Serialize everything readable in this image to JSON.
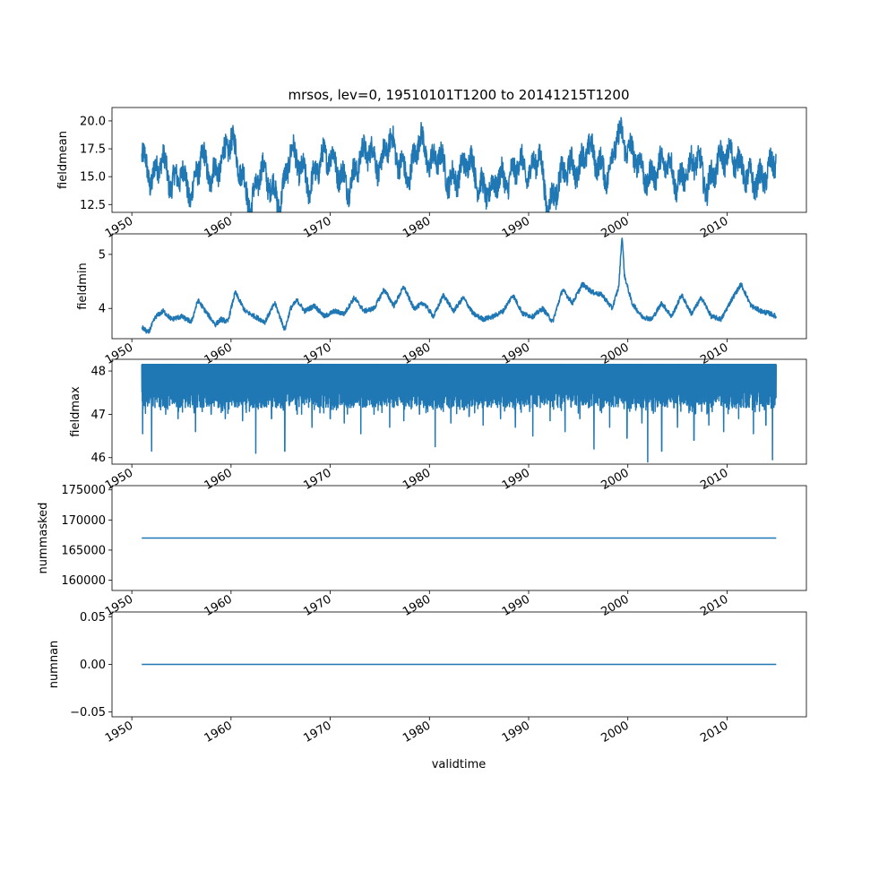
{
  "chart_data": {
    "type": "line",
    "title": "mrsos, lev=0, 19510101T1200 to 20141215T1200",
    "xlabel": "validtime",
    "series_color": "#1f77b4",
    "x_start": "1951-01-01",
    "x_end": "2014-12-15",
    "xlim": [
      "1948-01-01",
      "2018-01-01"
    ],
    "x_ticks": [
      "1950",
      "1960",
      "1970",
      "1980",
      "1990",
      "2000",
      "2010"
    ],
    "panels": [
      {
        "id": "fieldmean",
        "ylabel": "fieldmean",
        "ylim": [
          11.8,
          21.2
        ],
        "y_ticks": [
          {
            "value": 12.5,
            "label": "12.5"
          },
          {
            "value": 15.0,
            "label": "15.0"
          },
          {
            "value": 17.5,
            "label": "17.5"
          },
          {
            "value": 20.0,
            "label": "20.0"
          }
        ],
        "x": [
          "1951-01-01",
          "1952-01-01",
          "1953-01-01",
          "1954-01-01",
          "1955-01-01",
          "1956-01-01",
          "1957-01-01",
          "1958-01-01",
          "1959-01-01",
          "1960-01-01",
          "1961-01-01",
          "1962-01-01",
          "1963-01-01",
          "1964-01-01",
          "1965-01-01",
          "1966-01-01",
          "1967-01-01",
          "1968-01-01",
          "1969-01-01",
          "1970-01-01",
          "1971-01-01",
          "1972-01-01",
          "1973-01-01",
          "1974-01-01",
          "1975-01-01",
          "1976-01-01",
          "1977-01-01",
          "1978-01-01",
          "1979-01-01",
          "1980-01-01",
          "1981-01-01",
          "1982-01-01",
          "1983-01-01",
          "1984-01-01",
          "1985-01-01",
          "1986-01-01",
          "1987-01-01",
          "1988-01-01",
          "1989-01-01",
          "1990-01-01",
          "1991-01-01",
          "1992-01-01",
          "1993-01-01",
          "1994-01-01",
          "1995-01-01",
          "1996-01-01",
          "1997-01-01",
          "1998-01-01",
          "1999-01-01",
          "2000-01-01",
          "2001-01-01",
          "2002-01-01",
          "2003-01-01",
          "2004-01-01",
          "2005-01-01",
          "2006-01-01",
          "2007-01-01",
          "2008-01-01",
          "2009-01-01",
          "2010-01-01",
          "2011-01-01",
          "2012-01-01",
          "2013-01-01",
          "2014-01-01",
          "2014-12-15"
        ],
        "y": [
          17.0,
          14.5,
          16.8,
          14.2,
          15.5,
          13.2,
          17.0,
          14.8,
          16.2,
          18.5,
          15.5,
          12.1,
          15.8,
          14.2,
          12.5,
          17.5,
          15.8,
          14.0,
          16.5,
          17.0,
          15.2,
          14.0,
          16.8,
          17.5,
          15.6,
          18.5,
          16.2,
          14.8,
          18.8,
          16.0,
          17.0,
          14.5,
          15.2,
          16.8,
          14.2,
          13.5,
          15.0,
          14.5,
          16.5,
          15.0,
          17.2,
          12.0,
          14.5,
          16.0,
          15.5,
          17.8,
          16.2,
          15.0,
          19.0,
          17.5,
          16.5,
          14.5,
          15.8,
          16.5,
          14.2,
          15.5,
          16.8,
          13.8,
          16.2,
          17.0,
          16.5,
          15.0,
          14.5,
          15.2,
          16.8
        ]
      },
      {
        "id": "fieldmin",
        "ylabel": "fieldmin",
        "ylim": [
          3.44,
          5.38
        ],
        "y_ticks": [
          {
            "value": 4,
            "label": "4"
          },
          {
            "value": 5,
            "label": "5"
          }
        ],
        "x": [
          "1951-01-01",
          "1951-09-01",
          "1952-06-01",
          "1953-03-01",
          "1954-01-01",
          "1955-01-01",
          "1956-01-01",
          "1956-09-01",
          "1957-06-01",
          "1958-06-01",
          "1959-01-01",
          "1959-09-01",
          "1960-06-01",
          "1961-06-01",
          "1962-06-01",
          "1963-06-01",
          "1964-06-01",
          "1965-06-01",
          "1966-01-01",
          "1966-09-01",
          "1967-06-01",
          "1968-06-01",
          "1969-06-01",
          "1970-06-01",
          "1971-06-01",
          "1972-06-01",
          "1973-06-01",
          "1974-06-01",
          "1975-06-01",
          "1976-06-01",
          "1977-06-01",
          "1978-06-01",
          "1979-06-01",
          "1980-06-01",
          "1981-06-01",
          "1982-06-01",
          "1983-06-01",
          "1984-06-01",
          "1985-06-01",
          "1986-06-01",
          "1987-06-01",
          "1988-06-01",
          "1989-06-01",
          "1990-06-01",
          "1991-06-01",
          "1992-06-01",
          "1993-06-01",
          "1994-06-01",
          "1995-06-01",
          "1996-06-01",
          "1997-06-01",
          "1998-06-01",
          "1999-02-01",
          "1999-06-01",
          "1999-09-01",
          "2000-06-01",
          "2001-06-01",
          "2002-06-01",
          "2003-06-01",
          "2004-06-01",
          "2005-06-01",
          "2006-06-01",
          "2007-06-01",
          "2008-06-01",
          "2009-06-01",
          "2010-06-01",
          "2011-06-01",
          "2012-06-01",
          "2013-06-01",
          "2014-06-01",
          "2014-12-15"
        ],
        "y": [
          3.65,
          3.55,
          3.85,
          3.95,
          3.8,
          3.85,
          3.75,
          4.15,
          3.95,
          3.7,
          3.8,
          3.75,
          4.3,
          3.95,
          3.85,
          3.75,
          4.1,
          3.6,
          4.0,
          4.15,
          3.95,
          4.05,
          3.85,
          3.95,
          3.9,
          4.2,
          3.95,
          4.0,
          4.35,
          4.05,
          4.4,
          4.0,
          4.1,
          3.85,
          4.25,
          3.95,
          4.2,
          3.9,
          3.8,
          3.85,
          3.95,
          4.25,
          3.9,
          3.85,
          4.0,
          3.75,
          4.35,
          4.1,
          4.45,
          4.3,
          4.25,
          4.0,
          4.4,
          5.35,
          4.6,
          4.1,
          3.85,
          3.8,
          4.1,
          3.85,
          4.25,
          3.9,
          4.2,
          3.85,
          3.8,
          4.15,
          4.45,
          4.05,
          3.95,
          3.9,
          3.85
        ]
      },
      {
        "id": "fieldmax",
        "ylabel": "fieldmax",
        "ylim": [
          45.85,
          48.27
        ],
        "y_ticks": [
          {
            "value": 46,
            "label": "46"
          },
          {
            "value": 47,
            "label": "47"
          },
          {
            "value": 48,
            "label": "48"
          }
        ],
        "band_top": 48.15,
        "band_bottom": 47.3,
        "dips": [
          {
            "x": "1951-02-01",
            "y": 46.55
          },
          {
            "x": "1952-01-01",
            "y": 46.15
          },
          {
            "x": "1953-06-01",
            "y": 47.0
          },
          {
            "x": "1954-09-01",
            "y": 46.9
          },
          {
            "x": "1956-06-01",
            "y": 46.6
          },
          {
            "x": "1958-01-01",
            "y": 47.0
          },
          {
            "x": "1959-06-01",
            "y": 46.9
          },
          {
            "x": "1961-03-01",
            "y": 46.85
          },
          {
            "x": "1962-07-01",
            "y": 46.1
          },
          {
            "x": "1964-02-01",
            "y": 46.9
          },
          {
            "x": "1965-06-01",
            "y": 46.15
          },
          {
            "x": "1966-09-01",
            "y": 47.0
          },
          {
            "x": "1968-03-01",
            "y": 46.7
          },
          {
            "x": "1970-01-01",
            "y": 46.9
          },
          {
            "x": "1971-06-01",
            "y": 46.8
          },
          {
            "x": "1973-02-01",
            "y": 46.55
          },
          {
            "x": "1974-06-01",
            "y": 47.0
          },
          {
            "x": "1976-01-01",
            "y": 46.7
          },
          {
            "x": "1977-06-01",
            "y": 46.85
          },
          {
            "x": "1979-01-01",
            "y": 47.0
          },
          {
            "x": "1980-08-01",
            "y": 46.25
          },
          {
            "x": "1982-03-01",
            "y": 46.8
          },
          {
            "x": "1984-01-01",
            "y": 46.95
          },
          {
            "x": "1985-06-01",
            "y": 46.75
          },
          {
            "x": "1987-03-01",
            "y": 46.9
          },
          {
            "x": "1988-09-01",
            "y": 46.7
          },
          {
            "x": "1990-06-01",
            "y": 46.5
          },
          {
            "x": "1992-03-01",
            "y": 46.85
          },
          {
            "x": "1993-09-01",
            "y": 46.6
          },
          {
            "x": "1995-03-01",
            "y": 46.9
          },
          {
            "x": "1996-08-01",
            "y": 46.2
          },
          {
            "x": "1998-03-01",
            "y": 46.7
          },
          {
            "x": "1999-12-01",
            "y": 46.45
          },
          {
            "x": "2001-06-01",
            "y": 46.8
          },
          {
            "x": "2002-01-01",
            "y": 45.9
          },
          {
            "x": "2003-06-01",
            "y": 46.15
          },
          {
            "x": "2005-01-01",
            "y": 46.7
          },
          {
            "x": "2006-09-01",
            "y": 46.4
          },
          {
            "x": "2008-03-01",
            "y": 46.75
          },
          {
            "x": "2009-09-01",
            "y": 46.6
          },
          {
            "x": "2011-03-01",
            "y": 46.9
          },
          {
            "x": "2012-09-01",
            "y": 46.55
          },
          {
            "x": "2013-12-01",
            "y": 46.75
          },
          {
            "x": "2014-08-01",
            "y": 45.95
          }
        ]
      },
      {
        "id": "nummasked",
        "ylabel": "nummasked",
        "ylim": [
          158300,
          175700
        ],
        "y_ticks": [
          {
            "value": 160000,
            "label": "160000"
          },
          {
            "value": 165000,
            "label": "165000"
          },
          {
            "value": 170000,
            "label": "170000"
          },
          {
            "value": 175000,
            "label": "175000"
          }
        ],
        "x": [
          "1951-01-01",
          "2014-12-15"
        ],
        "y": [
          167000,
          167000
        ]
      },
      {
        "id": "numnan",
        "ylabel": "numnan",
        "ylim": [
          -0.055,
          0.055
        ],
        "y_ticks": [
          {
            "value": -0.05,
            "label": "−0.05"
          },
          {
            "value": 0.0,
            "label": "0.00"
          },
          {
            "value": 0.05,
            "label": "0.05"
          }
        ],
        "x": [
          "1951-01-01",
          "2014-12-15"
        ],
        "y": [
          0,
          0
        ]
      }
    ]
  }
}
